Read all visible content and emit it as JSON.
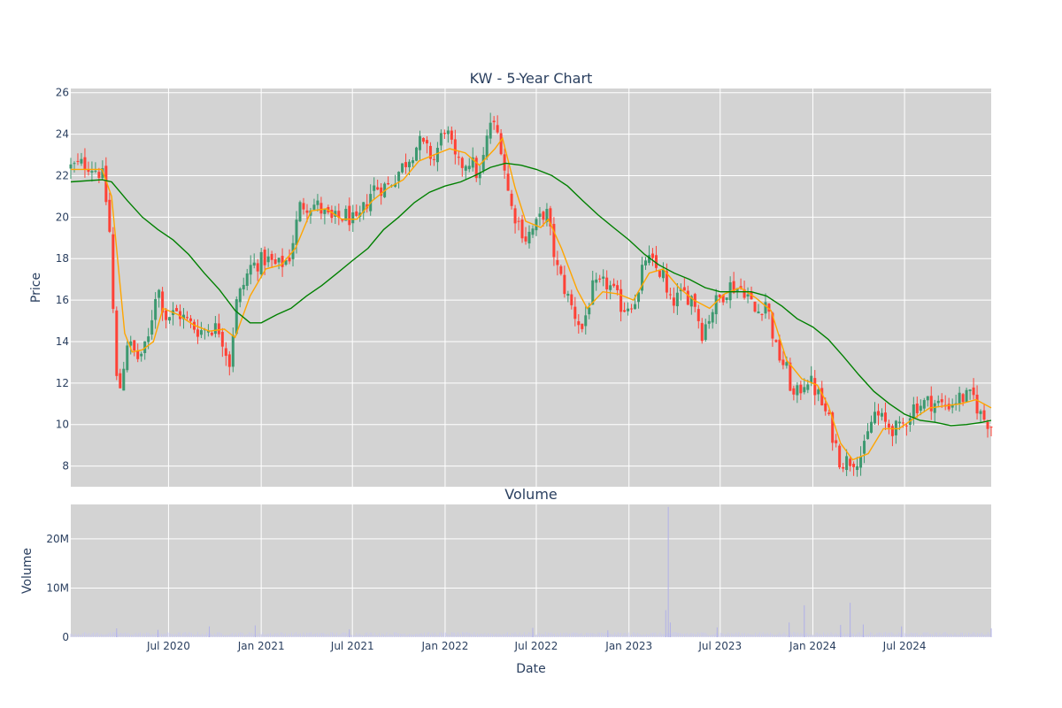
{
  "chart_data": [
    {
      "type": "candlestick",
      "title": "KW - 5-Year Chart",
      "ylabel": "Price",
      "ylim": [
        7,
        26.2
      ],
      "y_ticks": [
        "8",
        "10",
        "12",
        "14",
        "16",
        "18",
        "20",
        "22",
        "24",
        "26"
      ],
      "x_range": [
        "2019-12-20",
        "2024-12-20"
      ],
      "grid": true,
      "colors": {
        "increasing": "#3d9970",
        "decreasing": "#ff4136",
        "ma_short": "#ffa500",
        "ma_long": "#008000",
        "plot_bg": "#d3d3d3"
      },
      "close_keypoints": [
        [
          "2019-12-20",
          22.4
        ],
        [
          "2020-01-20",
          22.6
        ],
        [
          "2020-02-20",
          22.1
        ],
        [
          "2020-03-05",
          19.8
        ],
        [
          "2020-03-18",
          12.8
        ],
        [
          "2020-03-23",
          11.2
        ],
        [
          "2020-04-10",
          14.0
        ],
        [
          "2020-05-01",
          13.2
        ],
        [
          "2020-05-20",
          13.8
        ],
        [
          "2020-06-08",
          16.8
        ],
        [
          "2020-06-25",
          15.2
        ],
        [
          "2020-07-20",
          15.4
        ],
        [
          "2020-08-10",
          14.9
        ],
        [
          "2020-09-01",
          14.5
        ],
        [
          "2020-09-20",
          14.7
        ],
        [
          "2020-10-10",
          14.6
        ],
        [
          "2020-10-30",
          13.0
        ],
        [
          "2020-11-12",
          15.8
        ],
        [
          "2020-12-10",
          17.6
        ],
        [
          "2021-01-10",
          18.0
        ],
        [
          "2021-02-01",
          17.6
        ],
        [
          "2021-02-25",
          18.0
        ],
        [
          "2021-03-20",
          20.6
        ],
        [
          "2021-04-20",
          20.6
        ],
        [
          "2021-05-20",
          19.8
        ],
        [
          "2021-06-20",
          20.1
        ],
        [
          "2021-07-10",
          19.6
        ],
        [
          "2021-08-10",
          21.4
        ],
        [
          "2021-09-10",
          21.5
        ],
        [
          "2021-10-10",
          22.5
        ],
        [
          "2021-11-10",
          23.6
        ],
        [
          "2021-12-10",
          22.8
        ],
        [
          "2022-01-01",
          24.4
        ],
        [
          "2022-01-25",
          22.4
        ],
        [
          "2022-02-20",
          22.8
        ],
        [
          "2022-03-10",
          21.8
        ],
        [
          "2022-04-01",
          24.6
        ],
        [
          "2022-04-20",
          23.8
        ],
        [
          "2022-05-10",
          20.6
        ],
        [
          "2022-06-10",
          19.0
        ],
        [
          "2022-07-01",
          19.6
        ],
        [
          "2022-07-20",
          20.4
        ],
        [
          "2022-08-10",
          17.6
        ],
        [
          "2022-09-10",
          15.6
        ],
        [
          "2022-09-30",
          14.6
        ],
        [
          "2022-10-20",
          16.5
        ],
        [
          "2022-11-20",
          16.8
        ],
        [
          "2022-12-20",
          15.6
        ],
        [
          "2023-01-20",
          16.2
        ],
        [
          "2023-02-01",
          18.1
        ],
        [
          "2023-02-20",
          17.6
        ],
        [
          "2023-03-10",
          17.2
        ],
        [
          "2023-03-20",
          15.8
        ],
        [
          "2023-04-20",
          16.3
        ],
        [
          "2023-05-10",
          16.1
        ],
        [
          "2023-05-25",
          14.4
        ],
        [
          "2023-06-20",
          15.8
        ],
        [
          "2023-07-20",
          16.7
        ],
        [
          "2023-08-20",
          16.5
        ],
        [
          "2023-09-10",
          15.3
        ],
        [
          "2023-09-30",
          16.0
        ],
        [
          "2023-10-20",
          13.6
        ],
        [
          "2023-11-10",
          12.6
        ],
        [
          "2023-11-25",
          11.2
        ],
        [
          "2023-12-20",
          12.3
        ],
        [
          "2024-01-10",
          11.5
        ],
        [
          "2024-02-01",
          10.2
        ],
        [
          "2024-02-25",
          8.2
        ],
        [
          "2024-03-20",
          8.3
        ],
        [
          "2024-04-10",
          8.6
        ],
        [
          "2024-05-01",
          10.6
        ],
        [
          "2024-05-25",
          10.0
        ],
        [
          "2024-06-20",
          9.7
        ],
        [
          "2024-07-20",
          10.9
        ],
        [
          "2024-08-20",
          11.1
        ],
        [
          "2024-09-20",
          10.9
        ],
        [
          "2024-10-20",
          11.3
        ],
        [
          "2024-11-15",
          11.3
        ],
        [
          "2024-11-30",
          10.4
        ],
        [
          "2024-12-20",
          10.0
        ]
      ],
      "series": [
        {
          "style": "line",
          "color": "#ffa500",
          "points": [
            [
              "2019-12-20",
              22.3
            ],
            [
              "2020-02-20",
              22.3
            ],
            [
              "2020-03-10",
              21.0
            ],
            [
              "2020-04-05",
              14.4
            ],
            [
              "2020-04-20",
              13.5
            ],
            [
              "2020-05-10",
              13.6
            ],
            [
              "2020-06-01",
              14.0
            ],
            [
              "2020-06-20",
              15.6
            ],
            [
              "2020-07-20",
              15.3
            ],
            [
              "2020-08-20",
              14.8
            ],
            [
              "2020-09-20",
              14.5
            ],
            [
              "2020-10-20",
              14.6
            ],
            [
              "2020-11-10",
              14.2
            ],
            [
              "2020-12-10",
              16.2
            ],
            [
              "2021-01-10",
              17.5
            ],
            [
              "2021-02-10",
              17.7
            ],
            [
              "2021-03-10",
              18.5
            ],
            [
              "2021-04-10",
              20.3
            ],
            [
              "2021-05-10",
              20.4
            ],
            [
              "2021-06-10",
              19.9
            ],
            [
              "2021-07-10",
              19.9
            ],
            [
              "2021-08-10",
              20.8
            ],
            [
              "2021-09-10",
              21.4
            ],
            [
              "2021-10-10",
              21.8
            ],
            [
              "2021-11-10",
              22.7
            ],
            [
              "2021-12-10",
              23.0
            ],
            [
              "2022-01-10",
              23.3
            ],
            [
              "2022-02-10",
              23.1
            ],
            [
              "2022-03-10",
              22.5
            ],
            [
              "2022-04-10",
              23.3
            ],
            [
              "2022-04-25",
              23.8
            ],
            [
              "2022-05-20",
              21.4
            ],
            [
              "2022-06-10",
              19.8
            ],
            [
              "2022-07-10",
              19.5
            ],
            [
              "2022-07-25",
              19.9
            ],
            [
              "2022-08-20",
              18.5
            ],
            [
              "2022-09-20",
              16.5
            ],
            [
              "2022-10-10",
              15.6
            ],
            [
              "2022-11-10",
              16.4
            ],
            [
              "2022-12-10",
              16.3
            ],
            [
              "2023-01-10",
              16.0
            ],
            [
              "2023-02-10",
              17.3
            ],
            [
              "2023-03-10",
              17.5
            ],
            [
              "2023-04-10",
              16.6
            ],
            [
              "2023-05-10",
              16.0
            ],
            [
              "2023-06-10",
              15.6
            ],
            [
              "2023-07-10",
              16.3
            ],
            [
              "2023-08-10",
              16.6
            ],
            [
              "2023-09-10",
              16.1
            ],
            [
              "2023-10-10",
              15.5
            ],
            [
              "2023-11-10",
              13.1
            ],
            [
              "2023-12-10",
              12.2
            ],
            [
              "2024-01-10",
              11.9
            ],
            [
              "2024-02-01",
              10.9
            ],
            [
              "2024-02-25",
              9.1
            ],
            [
              "2024-03-20",
              8.3
            ],
            [
              "2024-04-20",
              8.6
            ],
            [
              "2024-05-20",
              9.8
            ],
            [
              "2024-06-20",
              9.8
            ],
            [
              "2024-07-20",
              10.3
            ],
            [
              "2024-08-20",
              10.8
            ],
            [
              "2024-09-20",
              10.9
            ],
            [
              "2024-10-20",
              11.0
            ],
            [
              "2024-11-20",
              11.2
            ],
            [
              "2024-12-20",
              10.8
            ]
          ]
        },
        {
          "style": "line",
          "color": "#008000",
          "points": [
            [
              "2019-12-20",
              21.7
            ],
            [
              "2020-02-20",
              21.8
            ],
            [
              "2020-03-10",
              21.7
            ],
            [
              "2020-04-10",
              20.8
            ],
            [
              "2020-05-10",
              20.0
            ],
            [
              "2020-06-10",
              19.4
            ],
            [
              "2020-07-10",
              18.9
            ],
            [
              "2020-08-10",
              18.2
            ],
            [
              "2020-09-10",
              17.3
            ],
            [
              "2020-10-10",
              16.5
            ],
            [
              "2020-11-10",
              15.5
            ],
            [
              "2020-12-10",
              14.9
            ],
            [
              "2021-01-01",
              14.9
            ],
            [
              "2021-02-01",
              15.3
            ],
            [
              "2021-03-01",
              15.6
            ],
            [
              "2021-04-01",
              16.2
            ],
            [
              "2021-05-01",
              16.7
            ],
            [
              "2021-06-01",
              17.3
            ],
            [
              "2021-07-01",
              17.9
            ],
            [
              "2021-08-01",
              18.5
            ],
            [
              "2021-09-01",
              19.4
            ],
            [
              "2021-10-01",
              20.0
            ],
            [
              "2021-11-01",
              20.7
            ],
            [
              "2021-12-01",
              21.2
            ],
            [
              "2022-01-01",
              21.5
            ],
            [
              "2022-02-01",
              21.7
            ],
            [
              "2022-03-01",
              22.0
            ],
            [
              "2022-04-01",
              22.4
            ],
            [
              "2022-05-01",
              22.6
            ],
            [
              "2022-06-01",
              22.5
            ],
            [
              "2022-07-01",
              22.3
            ],
            [
              "2022-08-01",
              22.0
            ],
            [
              "2022-09-01",
              21.5
            ],
            [
              "2022-10-01",
              20.8
            ],
            [
              "2022-11-01",
              20.1
            ],
            [
              "2022-12-01",
              19.5
            ],
            [
              "2023-01-01",
              18.9
            ],
            [
              "2023-02-01",
              18.2
            ],
            [
              "2023-03-01",
              17.7
            ],
            [
              "2023-04-01",
              17.3
            ],
            [
              "2023-05-01",
              17.0
            ],
            [
              "2023-06-01",
              16.6
            ],
            [
              "2023-07-01",
              16.4
            ],
            [
              "2023-08-01",
              16.4
            ],
            [
              "2023-09-01",
              16.4
            ],
            [
              "2023-10-01",
              16.2
            ],
            [
              "2023-11-01",
              15.7
            ],
            [
              "2023-12-01",
              15.1
            ],
            [
              "2024-01-01",
              14.7
            ],
            [
              "2024-02-01",
              14.1
            ],
            [
              "2024-03-01",
              13.3
            ],
            [
              "2024-04-01",
              12.4
            ],
            [
              "2024-05-01",
              11.6
            ],
            [
              "2024-06-01",
              11.0
            ],
            [
              "2024-07-01",
              10.5
            ],
            [
              "2024-08-01",
              10.2
            ],
            [
              "2024-09-01",
              10.1
            ],
            [
              "2024-10-01",
              9.95
            ],
            [
              "2024-11-01",
              10.0
            ],
            [
              "2024-12-01",
              10.1
            ],
            [
              "2024-12-20",
              10.2
            ]
          ]
        }
      ]
    },
    {
      "type": "bar",
      "title": "Volume",
      "xlabel": "Date",
      "ylabel": "Volume",
      "ylim": [
        0,
        27000000
      ],
      "y_ticks": [
        "0",
        "10M",
        "20M"
      ],
      "x_ticks": [
        "Jul 2020",
        "Jan 2021",
        "Jul 2021",
        "Jan 2022",
        "Jul 2022",
        "Jan 2023",
        "Jul 2023",
        "Jan 2024",
        "Jul 2024"
      ],
      "bar_color": "#c8c8f0",
      "base_volume": 700000,
      "spikes": [
        [
          "2020-03-20",
          1800000
        ],
        [
          "2020-06-10",
          1500000
        ],
        [
          "2020-09-20",
          2200000
        ],
        [
          "2020-12-20",
          2400000
        ],
        [
          "2021-06-25",
          1600000
        ],
        [
          "2022-06-24",
          1900000
        ],
        [
          "2022-11-20",
          1400000
        ],
        [
          "2023-03-15",
          5500000
        ],
        [
          "2023-03-20",
          26500000
        ],
        [
          "2023-03-24",
          3000000
        ],
        [
          "2023-06-25",
          2000000
        ],
        [
          "2023-11-15",
          3000000
        ],
        [
          "2023-12-15",
          6500000
        ],
        [
          "2024-02-25",
          2500000
        ],
        [
          "2024-03-15",
          7000000
        ],
        [
          "2024-04-10",
          2600000
        ],
        [
          "2024-06-25",
          2200000
        ],
        [
          "2024-12-20",
          1800000
        ]
      ]
    }
  ]
}
